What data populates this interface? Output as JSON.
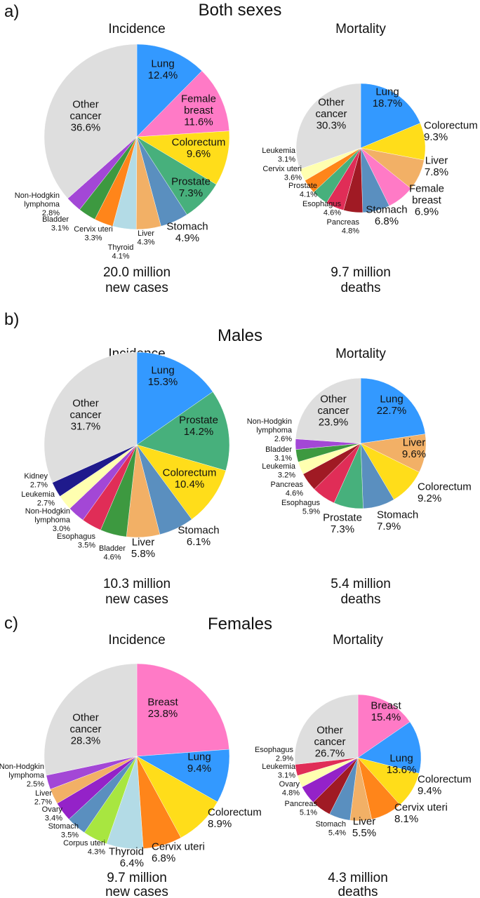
{
  "colors": {
    "Lung": "#3399ff",
    "Female breast": "#ff7ac6",
    "Breast": "#ff7ac6",
    "Colorectum": "#ffdd1a",
    "Prostate": "#47b07c",
    "Stomach": "#5a8fbf",
    "Liver": "#f2b066",
    "Thyroid": "#b3dbe6",
    "Cervix uteri": "#ff851a",
    "Bladder": "#3d9940",
    "Non-Hodgkin lymphoma": "#a347d6",
    "Other cancer": "#dedede",
    "Pancreas": "#a01a24",
    "Esophagus": "#e02d57",
    "Leukemia": "#ffffb0",
    "Kidney": "#1f1a8c",
    "Corpus uteri": "#a8e640",
    "Ovary": "#9422c8"
  },
  "panels": [
    {
      "letter": "a)",
      "title": "Both sexes"
    },
    {
      "letter": "b)",
      "title": "Males"
    },
    {
      "letter": "c)",
      "title": "Females"
    }
  ],
  "chart_data": [
    {
      "type": "pie",
      "panel": "Both sexes",
      "title": "Incidence",
      "total_line1": "20.0 million",
      "total_line2": "new cases",
      "slices": [
        [
          "Lung",
          12.4
        ],
        [
          "Female breast",
          11.6
        ],
        [
          "Colorectum",
          9.6
        ],
        [
          "Prostate",
          7.3
        ],
        [
          "Stomach",
          4.9
        ],
        [
          "Liver",
          4.3
        ],
        [
          "Thyroid",
          4.1
        ],
        [
          "Cervix uteri",
          3.3
        ],
        [
          "Bladder",
          3.1
        ],
        [
          "Non-Hodgkin lymphoma",
          2.8
        ],
        [
          "Other cancer",
          36.6
        ]
      ]
    },
    {
      "type": "pie",
      "panel": "Both sexes",
      "title": "Mortality",
      "total_line1": "9.7 million",
      "total_line2": "deaths",
      "slices": [
        [
          "Lung",
          18.7
        ],
        [
          "Colorectum",
          9.3
        ],
        [
          "Liver",
          7.8
        ],
        [
          "Female breast",
          6.9
        ],
        [
          "Stomach",
          6.8
        ],
        [
          "Pancreas",
          4.8
        ],
        [
          "Esophagus",
          4.6
        ],
        [
          "Prostate",
          4.1
        ],
        [
          "Cervix uteri",
          3.6
        ],
        [
          "Leukemia",
          3.1
        ],
        [
          "Other cancer",
          30.3
        ]
      ]
    },
    {
      "type": "pie",
      "panel": "Males",
      "title": "Incidence",
      "total_line1": "10.3 million",
      "total_line2": "new cases",
      "slices": [
        [
          "Lung",
          15.3
        ],
        [
          "Prostate",
          14.2
        ],
        [
          "Colorectum",
          10.4
        ],
        [
          "Stomach",
          6.1
        ],
        [
          "Liver",
          5.8
        ],
        [
          "Bladder",
          4.6
        ],
        [
          "Esophagus",
          3.5
        ],
        [
          "Non-Hodgkin lymphoma",
          3.0
        ],
        [
          "Leukemia",
          2.7
        ],
        [
          "Kidney",
          2.7
        ],
        [
          "Other cancer",
          31.7
        ]
      ]
    },
    {
      "type": "pie",
      "panel": "Males",
      "title": "Mortality",
      "total_line1": "5.4 million",
      "total_line2": "deaths",
      "slices": [
        [
          "Lung",
          22.7
        ],
        [
          "Liver",
          9.6
        ],
        [
          "Colorectum",
          9.2
        ],
        [
          "Stomach",
          7.9
        ],
        [
          "Prostate",
          7.3
        ],
        [
          "Esophagus",
          5.9
        ],
        [
          "Pancreas",
          4.6
        ],
        [
          "Leukemia",
          3.2
        ],
        [
          "Bladder",
          3.1
        ],
        [
          "Non-Hodgkin lymphoma",
          2.6
        ],
        [
          "Other cancer",
          23.9
        ]
      ]
    },
    {
      "type": "pie",
      "panel": "Females",
      "title": "Incidence",
      "total_line1": "9.7 million",
      "total_line2": "new cases",
      "slices": [
        [
          "Breast",
          23.8
        ],
        [
          "Lung",
          9.4
        ],
        [
          "Colorectum",
          8.9
        ],
        [
          "Cervix uteri",
          6.8
        ],
        [
          "Thyroid",
          6.4
        ],
        [
          "Corpus uteri",
          4.3
        ],
        [
          "Stomach",
          3.5
        ],
        [
          "Ovary",
          3.4
        ],
        [
          "Liver",
          2.7
        ],
        [
          "Non-Hodgkin lymphoma",
          2.5
        ],
        [
          "Other cancer",
          28.3
        ]
      ]
    },
    {
      "type": "pie",
      "panel": "Females",
      "title": "Mortality",
      "total_line1": "4.3 million",
      "total_line2": "deaths",
      "slices": [
        [
          "Breast",
          15.4
        ],
        [
          "Lung",
          13.6
        ],
        [
          "Colorectum",
          9.4
        ],
        [
          "Cervix uteri",
          8.1
        ],
        [
          "Liver",
          5.5
        ],
        [
          "Stomach",
          5.4
        ],
        [
          "Pancreas",
          5.1
        ],
        [
          "Ovary",
          4.8
        ],
        [
          "Leukemia",
          3.1
        ],
        [
          "Esophagus",
          2.9
        ],
        [
          "Other cancer",
          26.7
        ]
      ]
    }
  ]
}
